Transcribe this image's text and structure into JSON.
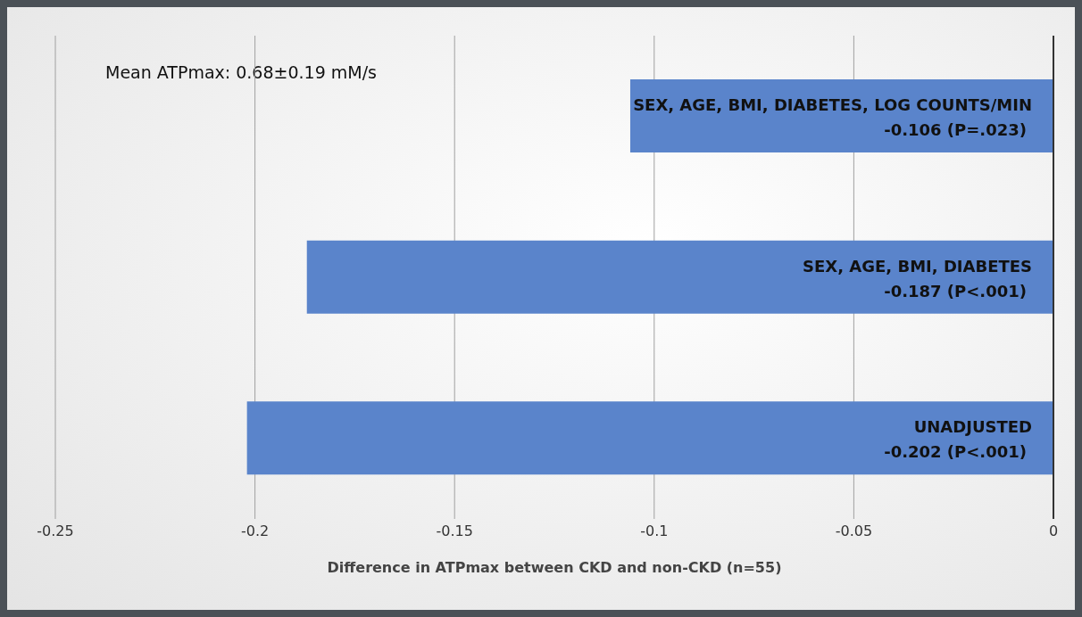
{
  "chart_data": {
    "type": "bar",
    "orientation": "horizontal",
    "categories": [
      "SEX, AGE, BMI, DIABETES, LOG COUNTS/MIN",
      "SEX, AGE, BMI, DIABETES",
      "UNADJUSTED"
    ],
    "values": [
      -0.106,
      -0.187,
      -0.202
    ],
    "value_labels": [
      "-0.106 (P=.023)",
      "-0.187 (P<.001)",
      "-0.202 (P<.001)"
    ],
    "color": "#5a84cb",
    "xlim": [
      -0.25,
      0
    ],
    "xticks": [
      -0.25,
      -0.2,
      -0.15,
      -0.1,
      -0.05,
      0
    ],
    "xlabel": "Difference in ATPmax between CKD and non-CKD (n=55)",
    "annotations": [
      "Mean ATPmax: 0.68±0.19 mM/s"
    ],
    "grid": "x",
    "tick_labels": "x"
  }
}
